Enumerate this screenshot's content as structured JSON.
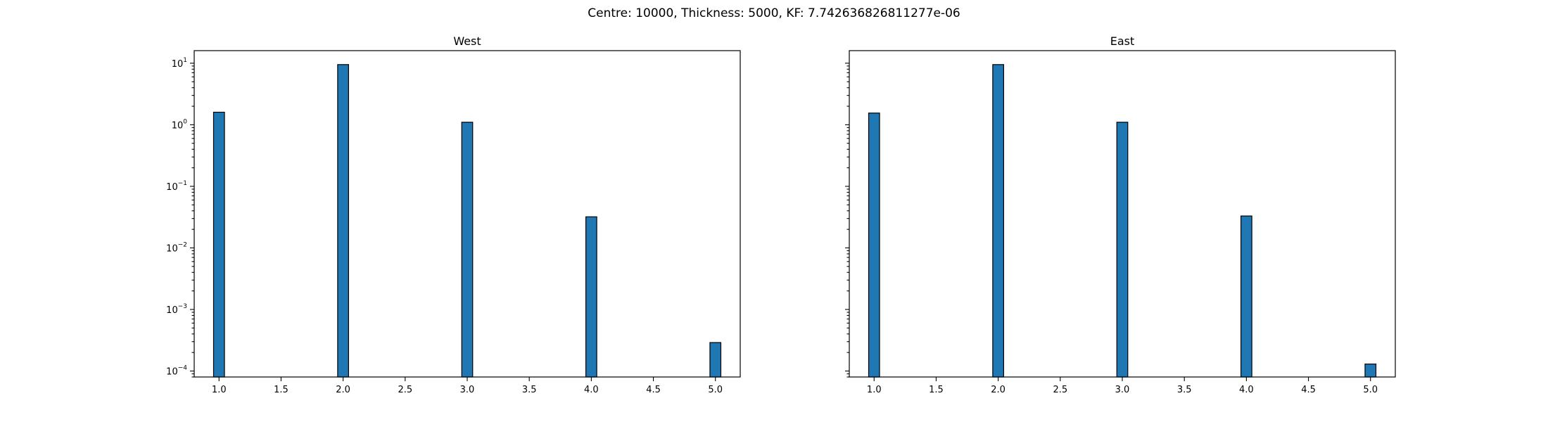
{
  "suptitle": "Centre: 10000, Thickness: 5000, KF: 7.742636826811277e-06",
  "colors": {
    "bar_fill": "#1f77b4",
    "bar_edge": "#000000",
    "frame": "#000000",
    "background": "#ffffff"
  },
  "chart_data": [
    {
      "type": "bar",
      "title": "West",
      "xlabel": "",
      "ylabel": "",
      "yscale": "log",
      "x": [
        1,
        2,
        3,
        4,
        5
      ],
      "values": [
        1.6,
        9.5,
        1.1,
        0.032,
        0.00029
      ],
      "xlim": [
        0.8,
        5.2
      ],
      "ylim": [
        8e-05,
        16
      ],
      "xticks": [
        "1.0",
        "1.5",
        "2.0",
        "2.5",
        "3.0",
        "3.5",
        "4.0",
        "4.5",
        "5.0"
      ],
      "xtick_values": [
        1.0,
        1.5,
        2.0,
        2.5,
        3.0,
        3.5,
        4.0,
        4.5,
        5.0
      ],
      "yticks": [
        {
          "base": "10",
          "exp": "1",
          "value": 10
        },
        {
          "base": "10",
          "exp": "0",
          "value": 1
        },
        {
          "base": "10",
          "exp": "−1",
          "value": 0.1
        },
        {
          "base": "10",
          "exp": "−2",
          "value": 0.01
        },
        {
          "base": "10",
          "exp": "−3",
          "value": 0.001
        },
        {
          "base": "10",
          "exp": "−4",
          "value": 0.0001
        }
      ],
      "show_ytick_labels": true,
      "grid": false
    },
    {
      "type": "bar",
      "title": "East",
      "xlabel": "",
      "ylabel": "",
      "yscale": "log",
      "x": [
        1,
        2,
        3,
        4,
        5
      ],
      "values": [
        1.55,
        9.5,
        1.1,
        0.033,
        0.00013
      ],
      "xlim": [
        0.8,
        5.2
      ],
      "ylim": [
        8e-05,
        16
      ],
      "xticks": [
        "1.0",
        "1.5",
        "2.0",
        "2.5",
        "3.0",
        "3.5",
        "4.0",
        "4.5",
        "5.0"
      ],
      "xtick_values": [
        1.0,
        1.5,
        2.0,
        2.5,
        3.0,
        3.5,
        4.0,
        4.5,
        5.0
      ],
      "yticks": [
        {
          "base": "10",
          "exp": "1",
          "value": 10
        },
        {
          "base": "10",
          "exp": "0",
          "value": 1
        },
        {
          "base": "10",
          "exp": "−1",
          "value": 0.1
        },
        {
          "base": "10",
          "exp": "−2",
          "value": 0.01
        },
        {
          "base": "10",
          "exp": "−3",
          "value": 0.001
        },
        {
          "base": "10",
          "exp": "−4",
          "value": 0.0001
        }
      ],
      "show_ytick_labels": false,
      "grid": false
    }
  ]
}
